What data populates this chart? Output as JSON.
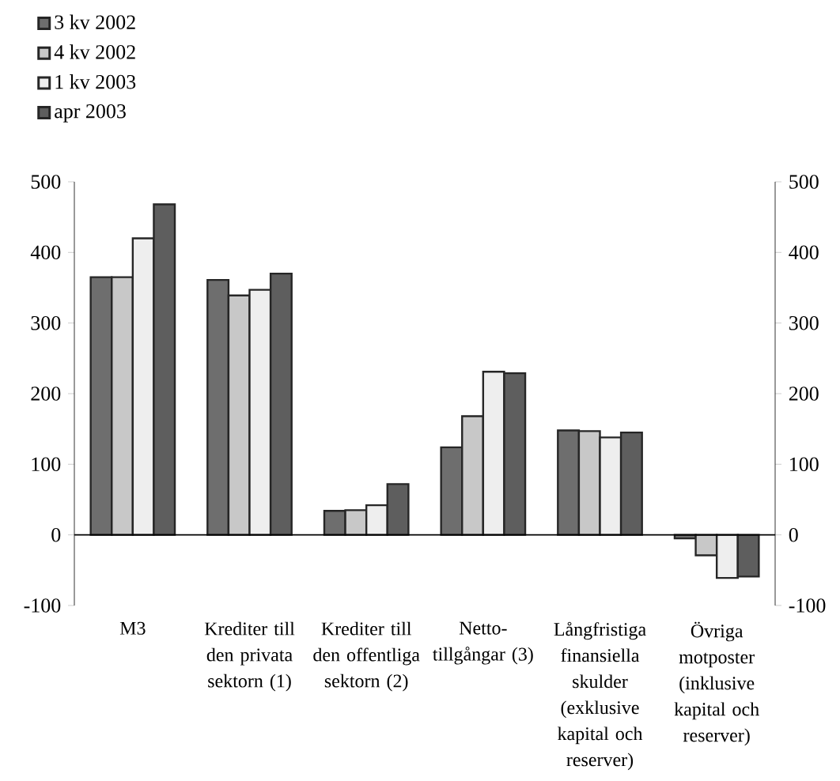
{
  "chart_data": {
    "type": "bar",
    "categories": [
      "M3",
      "Krediter till den privata sektorn (1)",
      "Krediter till den offentliga sektorn (2)",
      "Netto-tillgångar (3)",
      "Långfristiga finansiella skulder (exklusive kapital och reserver)",
      "Övriga motposter (inklusive kapital och reserver)"
    ],
    "series": [
      {
        "name": "3 kv 2002",
        "color": "#6e6e6e",
        "values": [
          365,
          361,
          34,
          124,
          148,
          -5
        ]
      },
      {
        "name": "4 kv 2002",
        "color": "#c8c8c8",
        "values": [
          365,
          339,
          35,
          168,
          147,
          -29
        ]
      },
      {
        "name": "1 kv 2003",
        "color": "#eeeeee",
        "values": [
          420,
          347,
          42,
          231,
          138,
          -61
        ]
      },
      {
        "name": "apr 2003",
        "color": "#5e5e5e",
        "values": [
          468,
          370,
          72,
          229,
          145,
          -59
        ]
      }
    ],
    "ylim": [
      -100,
      500
    ],
    "yticks": [
      -100,
      0,
      100,
      200,
      300,
      400,
      500
    ],
    "y2lim": [
      -100,
      500
    ],
    "y2ticks": [
      -100,
      0,
      100,
      200,
      300,
      400,
      500
    ],
    "ref_lines": [
      {
        "axis": "y",
        "value": 0
      }
    ],
    "legend": "top left"
  }
}
